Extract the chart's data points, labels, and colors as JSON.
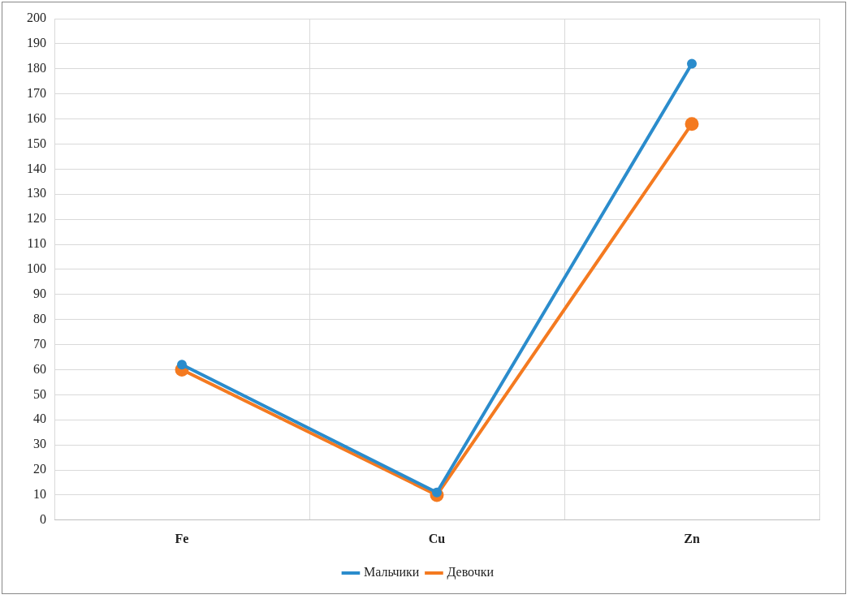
{
  "chart_data": {
    "type": "line",
    "categories": [
      "Fe",
      "Cu",
      "Zn"
    ],
    "series": [
      {
        "name": "Мальчики",
        "color": "#2b8ccc",
        "values": [
          62,
          11,
          182
        ]
      },
      {
        "name": "Девочки",
        "color": "#f47a20",
        "values": [
          60,
          10,
          158
        ]
      }
    ],
    "ylim": [
      0,
      200
    ],
    "yticks": [
      0,
      10,
      20,
      30,
      40,
      50,
      60,
      70,
      80,
      90,
      100,
      110,
      120,
      130,
      140,
      150,
      160,
      170,
      180,
      190,
      200
    ],
    "grid": true,
    "legend": "bottom",
    "marker": "circle",
    "line_style": "solid"
  }
}
